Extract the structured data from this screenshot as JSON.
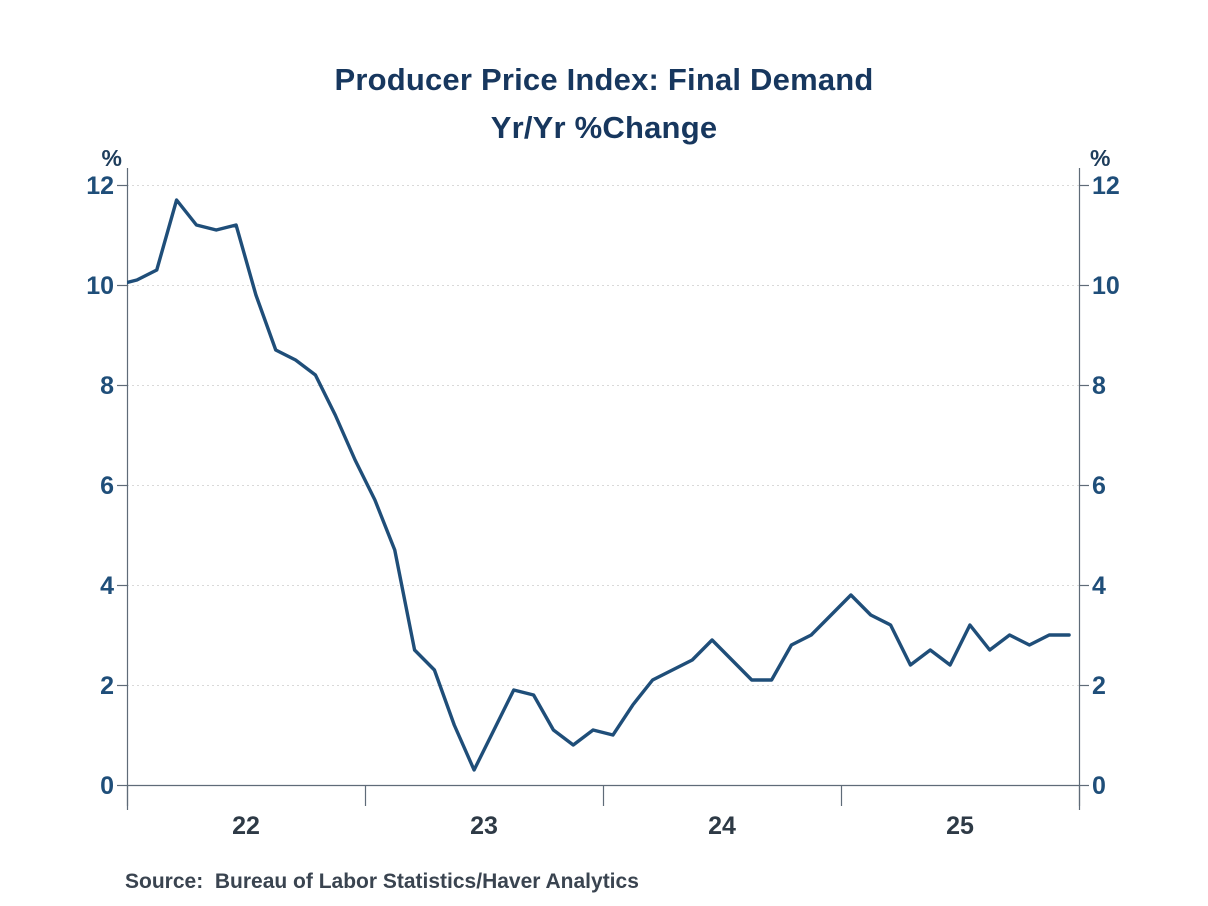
{
  "chart_data": {
    "type": "line",
    "title": "Producer Price Index: Final Demand",
    "subtitle": "Yr/Yr %Change",
    "source_line": "Source:  Bureau of Labor Statistics/Haver Analytics",
    "y_axis": {
      "unit_label_left": "%",
      "unit_label_right": "%",
      "min": 0,
      "max": 12,
      "tick_labels": [
        "0",
        "2",
        "4",
        "6",
        "8",
        "10",
        "12"
      ],
      "tick_values": [
        0,
        2,
        4,
        6,
        8,
        10,
        12
      ],
      "gridline_values": [
        2,
        4,
        6,
        8,
        10,
        12
      ],
      "grid_style": "dotted"
    },
    "x_axis": {
      "tick_labels": [
        "22",
        "23",
        "24",
        "25"
      ],
      "year_boundaries": [
        "2022-01",
        "2023-01",
        "2024-01",
        "2025-01",
        "2026-01"
      ],
      "note": "year ticks at January boundaries, labels centered mid-year"
    },
    "series": [
      {
        "name": "Producer Price Index: Final Demand, Yr/Yr % Change",
        "frequency": "monthly",
        "start": "2021-12",
        "values": [
          10.0,
          10.1,
          10.3,
          11.7,
          11.2,
          11.1,
          11.2,
          9.8,
          8.7,
          8.5,
          8.2,
          7.4,
          6.5,
          5.7,
          4.7,
          2.7,
          2.3,
          1.2,
          0.3,
          1.1,
          1.9,
          1.8,
          1.1,
          0.8,
          1.1,
          1.0,
          1.6,
          2.1,
          2.3,
          2.5,
          2.9,
          2.5,
          2.1,
          2.1,
          2.8,
          3.0,
          3.4,
          3.8,
          3.4,
          3.2,
          2.4,
          2.7,
          2.4,
          3.2,
          2.7,
          3.0,
          2.8,
          3.0,
          3.0
        ]
      }
    ],
    "colors": {
      "line": "#1f4e79",
      "title": "#17375e",
      "y_tick_label": "#1f4e79",
      "x_tick_label": "#2e3a46",
      "axis_frame": "#5f6b78",
      "gridline": "#d9d9d9",
      "source_text": "#3a4450",
      "background": "#ffffff"
    },
    "legend": "none"
  }
}
